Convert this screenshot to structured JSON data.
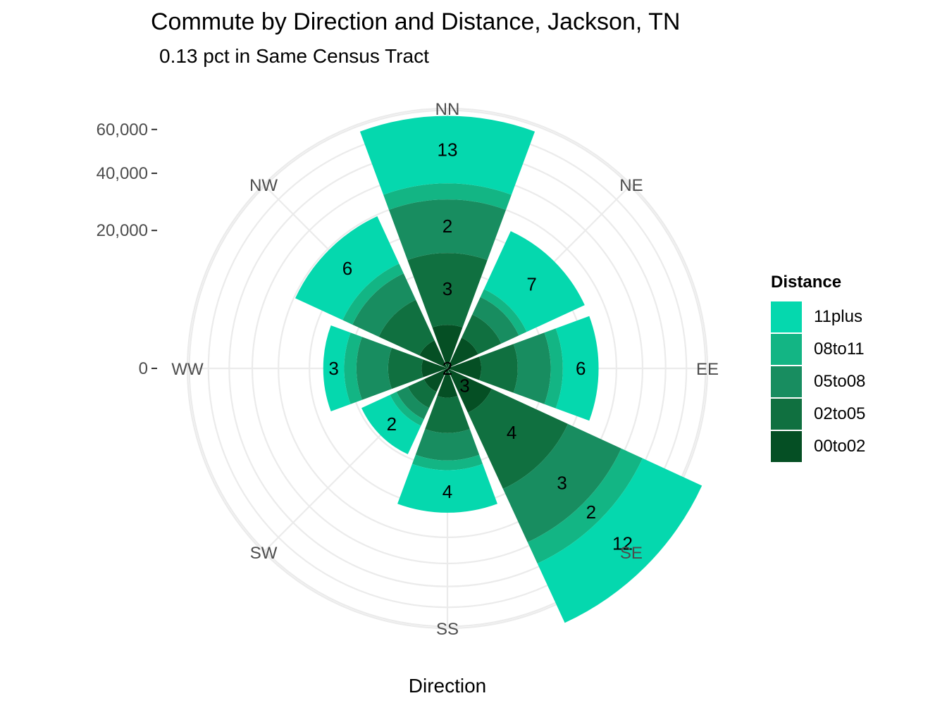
{
  "title": "Commute by Direction and Distance, Jackson, TN",
  "subtitle": "0.13 pct in Same Census Tract",
  "xlabel": "Direction",
  "legend": {
    "title": "Distance",
    "items": [
      {
        "label": "11plus",
        "color": "#05D8AE"
      },
      {
        "label": "08to11",
        "color": "#13B584"
      },
      {
        "label": "05to08",
        "color": "#188D60"
      },
      {
        "label": "02to05",
        "color": "#107040"
      },
      {
        "label": "00to02",
        "color": "#054F24"
      }
    ]
  },
  "chart_data": {
    "type": "stacked polar bar (wind rose)",
    "title": "Commute by Direction and Distance, Jackson, TN",
    "subtitle": "0.13 pct in Same Census Tract",
    "xlabel": "Direction",
    "ylabel": "",
    "radial_ticks": [
      0,
      20000,
      40000,
      60000
    ],
    "radial_tick_labels": [
      "0",
      "20,000",
      "40,000",
      "60,000"
    ],
    "rlim": [
      0,
      71000
    ],
    "grid": true,
    "legend_position": "right",
    "categories": [
      "NN",
      "NE",
      "EE",
      "SE",
      "SS",
      "SW",
      "WW",
      "NW"
    ],
    "stack_order_inner_to_outer": [
      "00to02",
      "02to05",
      "05to08",
      "08to11",
      "11plus"
    ],
    "series": [
      {
        "name": "00to02",
        "color": "#054F24",
        "values": [
          2000,
          1200,
          1200,
          2500,
          900,
          700,
          700,
          1000
        ]
      },
      {
        "name": "02to05",
        "color": "#107040",
        "values": [
          12000,
          2500,
          4000,
          16000,
          3500,
          1300,
          3000,
          5000
        ]
      },
      {
        "name": "05to08",
        "color": "#188D60",
        "values": [
          16000,
          2800,
          6000,
          20000,
          4500,
          1300,
          5000,
          5500
        ]
      },
      {
        "name": "08to11",
        "color": "#13B584",
        "values": [
          6000,
          1500,
          2800,
          10000,
          2000,
          900,
          2500,
          2500
        ]
      },
      {
        "name": "11plus",
        "color": "#05D8AE",
        "values": [
          31000,
          16000,
          10000,
          34000,
          11000,
          5200,
          5000,
          15500
        ]
      }
    ],
    "segment_labels": {
      "NN": [
        "",
        "3",
        "2",
        "",
        "13"
      ],
      "NE": [
        "",
        "",
        "",
        "",
        "7"
      ],
      "EE": [
        "",
        "",
        "",
        "",
        "6"
      ],
      "SE": [
        "3",
        "4",
        "3",
        "2",
        "12"
      ],
      "SS": [
        "",
        "",
        "",
        "",
        "4"
      ],
      "SW": [
        "",
        "",
        "",
        "",
        "2"
      ],
      "WW": [
        "",
        "",
        "",
        "",
        "3"
      ],
      "NW": [
        "",
        "",
        "",
        "",
        "6"
      ],
      "center": "2"
    }
  }
}
